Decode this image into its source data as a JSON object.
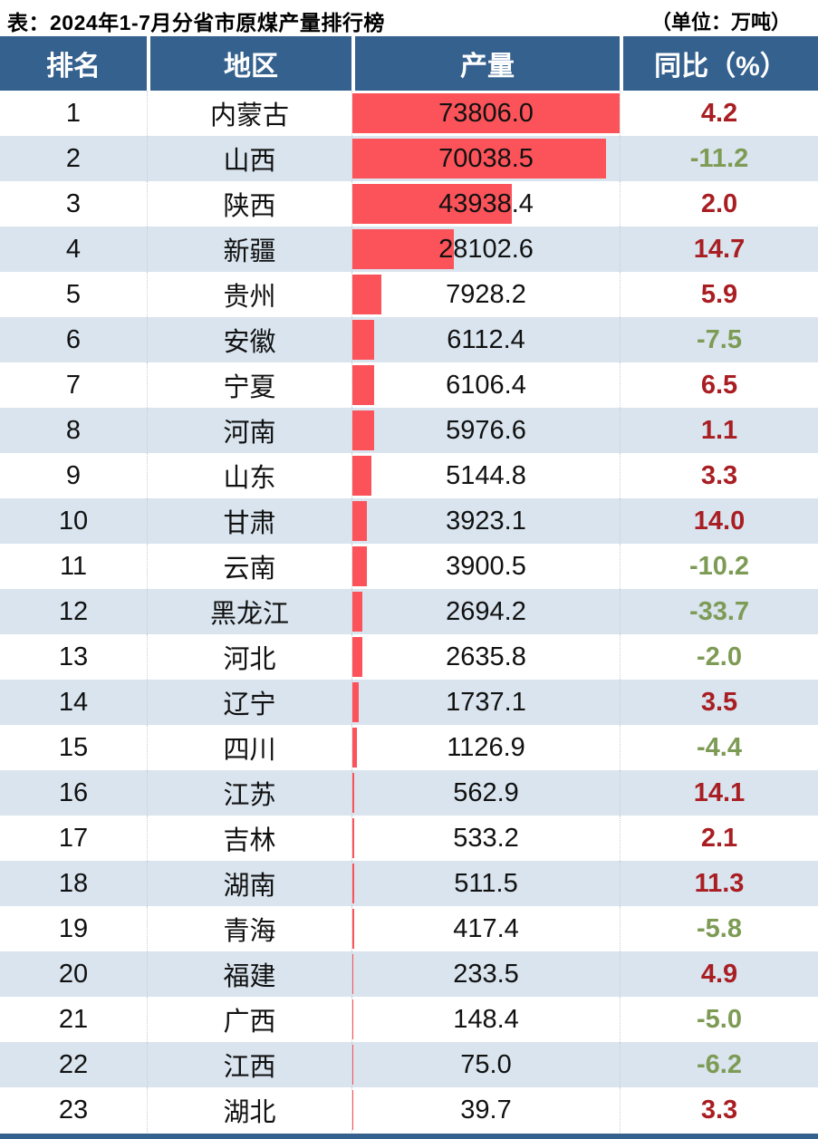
{
  "title": "表：2024年1-7月分省市原煤产量排行榜",
  "unit_label": "（单位：万吨）",
  "table": {
    "headers": [
      "排名",
      "地区",
      "产量",
      "同比（%）"
    ],
    "rows": [
      {
        "rank": "1",
        "region": "内蒙古",
        "production": "73806.0",
        "yoy": "4.2"
      },
      {
        "rank": "2",
        "region": "山西",
        "production": "70038.5",
        "yoy": "-11.2"
      },
      {
        "rank": "3",
        "region": "陕西",
        "production": "43938.4",
        "yoy": "2.0"
      },
      {
        "rank": "4",
        "region": "新疆",
        "production": "28102.6",
        "yoy": "14.7"
      },
      {
        "rank": "5",
        "region": "贵州",
        "production": "7928.2",
        "yoy": "5.9"
      },
      {
        "rank": "6",
        "region": "安徽",
        "production": "6112.4",
        "yoy": "-7.5"
      },
      {
        "rank": "7",
        "region": "宁夏",
        "production": "6106.4",
        "yoy": "6.5"
      },
      {
        "rank": "8",
        "region": "河南",
        "production": "5976.6",
        "yoy": "1.1"
      },
      {
        "rank": "9",
        "region": "山东",
        "production": "5144.8",
        "yoy": "3.3"
      },
      {
        "rank": "10",
        "region": "甘肃",
        "production": "3923.1",
        "yoy": "14.0"
      },
      {
        "rank": "11",
        "region": "云南",
        "production": "3900.5",
        "yoy": "-10.2"
      },
      {
        "rank": "12",
        "region": "黑龙江",
        "production": "2694.2",
        "yoy": "-33.7"
      },
      {
        "rank": "13",
        "region": "河北",
        "production": "2635.8",
        "yoy": "-2.0"
      },
      {
        "rank": "14",
        "region": "辽宁",
        "production": "1737.1",
        "yoy": "3.5"
      },
      {
        "rank": "15",
        "region": "四川",
        "production": "1126.9",
        "yoy": "-4.4"
      },
      {
        "rank": "16",
        "region": "江苏",
        "production": "562.9",
        "yoy": "14.1"
      },
      {
        "rank": "17",
        "region": "吉林",
        "production": "533.2",
        "yoy": "2.1"
      },
      {
        "rank": "18",
        "region": "湖南",
        "production": "511.5",
        "yoy": "11.3"
      },
      {
        "rank": "19",
        "region": "青海",
        "production": "417.4",
        "yoy": "-5.8"
      },
      {
        "rank": "20",
        "region": "福建",
        "production": "233.5",
        "yoy": "4.9"
      },
      {
        "rank": "21",
        "region": "广西",
        "production": "148.4",
        "yoy": "-5.0"
      },
      {
        "rank": "22",
        "region": "江西",
        "production": "75.0",
        "yoy": "-6.2"
      },
      {
        "rank": "23",
        "region": "湖北",
        "production": "39.7",
        "yoy": "3.3"
      }
    ]
  },
  "colors": {
    "header_bg": "#35618e",
    "alt_row_bg": "#d9e4ee",
    "bar": "#fb5359",
    "yoy_positive": "#a91e22",
    "yoy_negative": "#7d9b55"
  },
  "chart_data": {
    "type": "bar",
    "title": "2024年1-7月分省市原煤产量排行榜",
    "xlabel": "产量（万吨）",
    "ylabel": "地区",
    "orientation": "horizontal",
    "max_value": 73806.0,
    "xlim": [
      0,
      73806.0
    ],
    "categories": [
      "内蒙古",
      "山西",
      "陕西",
      "新疆",
      "贵州",
      "安徽",
      "宁夏",
      "河南",
      "山东",
      "甘肃",
      "云南",
      "黑龙江",
      "河北",
      "辽宁",
      "四川",
      "江苏",
      "吉林",
      "湖南",
      "青海",
      "福建",
      "广西",
      "江西",
      "湖北"
    ],
    "series": [
      {
        "name": "产量(万吨)",
        "values": [
          73806.0,
          70038.5,
          43938.4,
          28102.6,
          7928.2,
          6112.4,
          6106.4,
          5976.6,
          5144.8,
          3923.1,
          3900.5,
          2694.2,
          2635.8,
          1737.1,
          1126.9,
          562.9,
          533.2,
          511.5,
          417.4,
          233.5,
          148.4,
          75.0,
          39.7
        ]
      },
      {
        "name": "同比(%)",
        "values": [
          4.2,
          -11.2,
          2.0,
          14.7,
          5.9,
          -7.5,
          6.5,
          1.1,
          3.3,
          14.0,
          -10.2,
          -33.7,
          -2.0,
          3.5,
          -4.4,
          14.1,
          2.1,
          11.3,
          -5.8,
          4.9,
          -5.0,
          -6.2,
          3.3
        ]
      }
    ],
    "legend": "none",
    "grid": false
  }
}
